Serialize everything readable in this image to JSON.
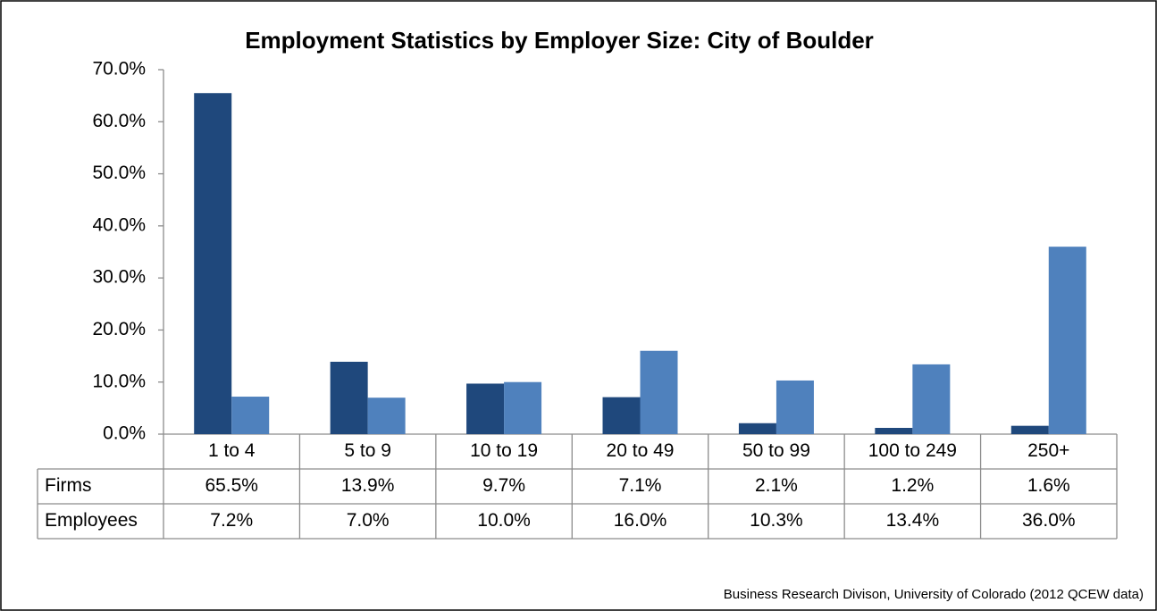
{
  "chart_data": {
    "type": "bar",
    "title": "Employment Statistics by Employer Size: City of Boulder",
    "categories": [
      "1 to 4",
      "5 to 9",
      "10 to 19",
      "20 to 49",
      "50 to 99",
      "100 to 249",
      "250+"
    ],
    "series": [
      {
        "name": "Firms",
        "color": "#1f487c",
        "values": [
          65.5,
          13.9,
          9.7,
          7.1,
          2.1,
          1.2,
          1.6
        ],
        "value_labels": [
          "65.5%",
          "13.9%",
          "9.7%",
          "7.1%",
          "2.1%",
          "1.2%",
          "1.6%"
        ]
      },
      {
        "name": "Employees",
        "color": "#4f81bd",
        "values": [
          7.2,
          7.0,
          10.0,
          16.0,
          10.3,
          13.4,
          36.0
        ],
        "value_labels": [
          "7.2%",
          "7.0%",
          "10.0%",
          "16.0%",
          "10.3%",
          "13.4%",
          "36.0%"
        ]
      }
    ],
    "ylim": [
      0,
      70
    ],
    "yticks": [
      {
        "value": 0,
        "label": "0.0%"
      },
      {
        "value": 10,
        "label": "10.0%"
      },
      {
        "value": 20,
        "label": "20.0%"
      },
      {
        "value": 30,
        "label": "30.0%"
      },
      {
        "value": 40,
        "label": "40.0%"
      },
      {
        "value": 50,
        "label": "50.0%"
      },
      {
        "value": 60,
        "label": "60.0%"
      },
      {
        "value": 70,
        "label": "70.0%"
      }
    ],
    "grid": false,
    "source": "Business Research Divison, University of Colorado (2012 QCEW data)"
  }
}
